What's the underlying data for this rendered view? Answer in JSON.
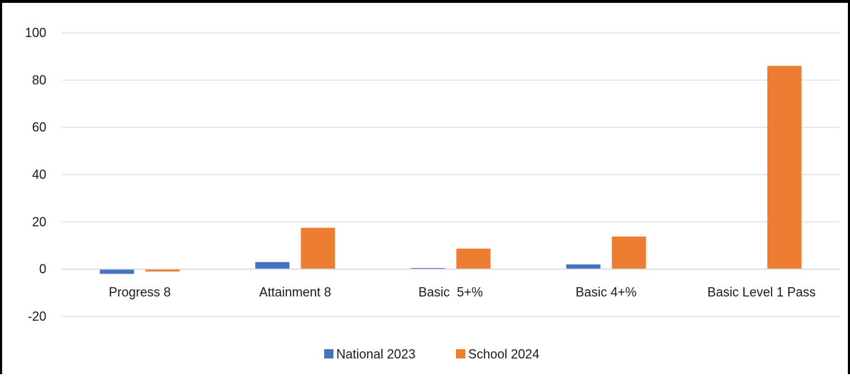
{
  "chart_data": {
    "type": "bar",
    "categories": [
      "Progress 8",
      "Attainment 8",
      "Basic  5+%",
      "Basic 4+%",
      "Basic Level 1 Pass"
    ],
    "series": [
      {
        "name": "National 2023",
        "values": [
          -2,
          3,
          0.5,
          2,
          0
        ],
        "color": "#4472c4"
      },
      {
        "name": "School 2024",
        "values": [
          -1,
          17.5,
          8.7,
          13.8,
          86
        ],
        "color": "#ed7d31"
      }
    ],
    "ylim": [
      -20,
      100
    ],
    "yticks": [
      -20,
      0,
      20,
      40,
      60,
      80,
      100
    ],
    "grid": true,
    "legend": "bottom",
    "title": "",
    "xlabel": "",
    "ylabel": ""
  }
}
